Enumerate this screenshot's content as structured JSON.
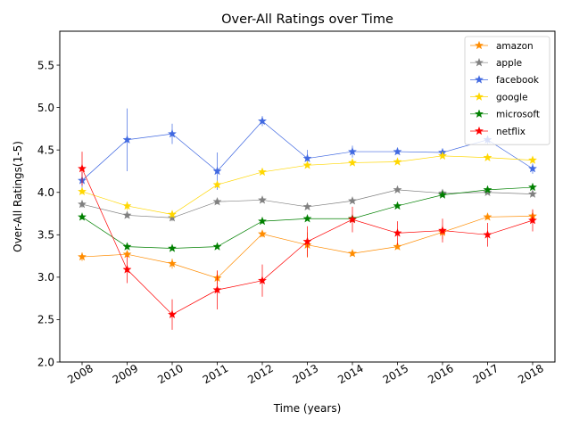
{
  "chart_data": {
    "type": "line",
    "title": "Over-All Ratings over Time",
    "xlabel": "Time (years)",
    "ylabel": "Over-All Ratings(1-5)",
    "ylim": [
      2.0,
      5.9
    ],
    "yticks": [
      "2.0",
      "2.5",
      "3.0",
      "3.5",
      "4.0",
      "4.5",
      "5.0",
      "5.5"
    ],
    "categories": [
      "2008",
      "2009",
      "2010",
      "2011",
      "2012",
      "2013",
      "2014",
      "2015",
      "2016",
      "2017",
      "2018"
    ],
    "grid": false,
    "legend_position": "upper-right",
    "marker": "star",
    "series": [
      {
        "name": "amazon",
        "color": "#ff8c00",
        "values": [
          3.24,
          3.27,
          3.16,
          2.99,
          3.51,
          3.38,
          3.28,
          3.36,
          3.53,
          3.71,
          3.72
        ],
        "errors": [
          0.05,
          0.03,
          0.06,
          0.08,
          0.04,
          0.15,
          0.03,
          0.03,
          0.08,
          0.03,
          0.07
        ]
      },
      {
        "name": "apple",
        "color": "#808080",
        "values": [
          3.86,
          3.73,
          3.7,
          3.89,
          3.91,
          3.83,
          3.9,
          4.03,
          3.99,
          4.0,
          3.98
        ],
        "errors": [
          0.04,
          0.03,
          0.04,
          0.03,
          0.03,
          0.02,
          0.02,
          0.02,
          0.02,
          0.02,
          0.03
        ]
      },
      {
        "name": "facebook",
        "color": "#4169e1",
        "values": [
          4.14,
          4.62,
          4.69,
          4.25,
          4.84,
          4.4,
          4.48,
          4.48,
          4.47,
          4.62,
          4.28
        ],
        "errors": [
          0.1,
          0.37,
          0.12,
          0.22,
          0.06,
          0.1,
          0.07,
          0.03,
          0.03,
          0.05,
          0.06
        ]
      },
      {
        "name": "google",
        "color": "#ffd700",
        "values": [
          4.01,
          3.84,
          3.74,
          4.09,
          4.24,
          4.32,
          4.35,
          4.36,
          4.43,
          4.41,
          4.38
        ],
        "errors": [
          0.03,
          0.05,
          0.04,
          0.03,
          0.02,
          0.02,
          0.02,
          0.01,
          0.01,
          0.02,
          0.03
        ]
      },
      {
        "name": "microsoft",
        "color": "#008000",
        "values": [
          3.71,
          3.36,
          3.34,
          3.36,
          3.66,
          3.69,
          3.69,
          3.84,
          3.97,
          4.03,
          4.06
        ],
        "errors": [
          0.03,
          0.03,
          0.02,
          0.02,
          0.02,
          0.02,
          0.02,
          0.02,
          0.02,
          0.02,
          0.02
        ]
      },
      {
        "name": "netflix",
        "color": "#ff0000",
        "values": [
          4.28,
          3.09,
          2.56,
          2.85,
          2.96,
          3.42,
          3.68,
          3.52,
          3.55,
          3.5,
          3.67
        ],
        "errors": [
          0.2,
          0.16,
          0.18,
          0.23,
          0.19,
          0.18,
          0.15,
          0.14,
          0.14,
          0.14,
          0.13
        ]
      }
    ]
  }
}
